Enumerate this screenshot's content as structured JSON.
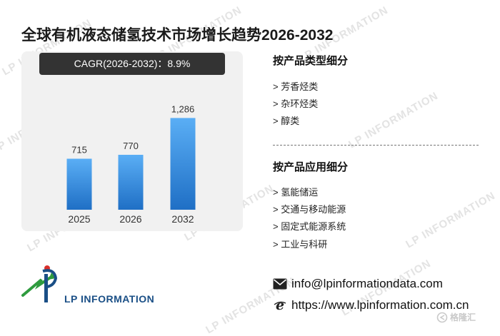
{
  "title": "全球有机液态储氢技术市场增长趋势2026-2032",
  "cagr_text": "CAGR(2026-2032)：8.9%",
  "chart_data": {
    "type": "bar",
    "categories": [
      "2025",
      "2026",
      "2032"
    ],
    "values": [
      715,
      770,
      1286
    ],
    "value_labels": [
      "715",
      "770",
      "1,286"
    ],
    "title": "",
    "xlabel": "",
    "ylabel": "",
    "ylim": [
      0,
      1600
    ],
    "grid": false,
    "bar_gradient": [
      "#5aaef5",
      "#1f6fc5"
    ]
  },
  "segments": {
    "by_type": {
      "heading": "按产品类型细分",
      "items": [
        "> 芳香烃类",
        "> 杂环烃类",
        "> 醇类"
      ]
    },
    "by_application": {
      "heading": "按产品应用细分",
      "items": [
        "> 氢能储运",
        "> 交通与移动能源",
        "> 固定式能源系统",
        "> 工业与科研"
      ]
    }
  },
  "contact": {
    "email": "info@lpinformationdata.com",
    "website": "https://www.lpinformation.com.cn"
  },
  "logo": {
    "text": "LP INFORMATION"
  },
  "watermark_text": "LP INFORMATION",
  "corner_tag": "格隆汇",
  "icons": {
    "email": "envelope-icon",
    "website": "browser-e-icon",
    "logo": "lp-information-logo-icon"
  }
}
